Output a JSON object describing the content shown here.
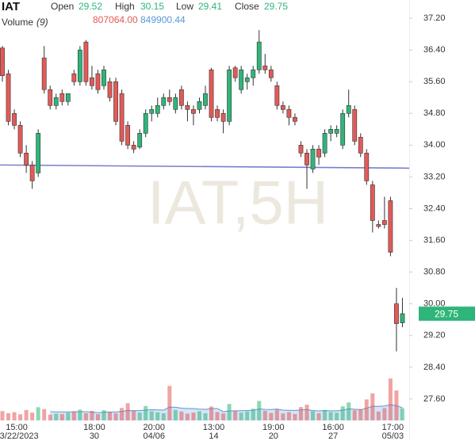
{
  "header": {
    "symbol": "IAT",
    "open_label": "Open",
    "open": 29.52,
    "high_label": "High",
    "high": 30.15,
    "low_label": "Low",
    "low": 29.41,
    "close_label": "Close",
    "close": 29.75,
    "volume_label": "Volume",
    "volume_period": "(9)",
    "volume": "807064.00",
    "volume_ma": "849900.44"
  },
  "chart_data": {
    "type": "candlestick",
    "watermark": "IAT,5H",
    "up_color": "#2fb57a",
    "down_color": "#e25a58",
    "ma_color": "#5b97d6",
    "categories": [
      null,
      null,
      "15:00",
      null,
      null,
      null,
      null,
      null,
      null,
      null,
      null,
      null,
      null,
      null,
      null,
      "18:00",
      null,
      null,
      null,
      null,
      null,
      null,
      null,
      null,
      null,
      "20:00",
      null,
      null,
      null,
      null,
      null,
      null,
      null,
      null,
      null,
      "13:00",
      null,
      null,
      null,
      null,
      null,
      null,
      null,
      null,
      null,
      "19:00",
      null,
      null,
      null,
      null,
      null,
      null,
      null,
      null,
      null,
      "16:00",
      null,
      null,
      null,
      null,
      null,
      null,
      null,
      null,
      null,
      "17:00",
      null,
      null
    ],
    "dates": [
      null,
      null,
      "03/22/2023",
      null,
      null,
      null,
      null,
      null,
      null,
      null,
      null,
      null,
      null,
      null,
      null,
      "30",
      null,
      null,
      null,
      null,
      null,
      null,
      null,
      null,
      null,
      "04/06",
      null,
      null,
      null,
      null,
      null,
      null,
      null,
      null,
      null,
      "14",
      null,
      null,
      null,
      null,
      null,
      null,
      null,
      null,
      null,
      "20",
      null,
      null,
      null,
      null,
      null,
      null,
      null,
      null,
      null,
      "27",
      null,
      null,
      null,
      null,
      null,
      null,
      null,
      null,
      null,
      "05/03",
      null,
      null
    ],
    "open": [
      36.45,
      35.8,
      34.8,
      34.5,
      33.8,
      33.5,
      33.3,
      36.2,
      35.4,
      35.0,
      35.3,
      35.1,
      35.8,
      35.6,
      36.6,
      35.7,
      35.8,
      35.5,
      35.6,
      35.6,
      35.3,
      34.5,
      34.0,
      33.95,
      34.3,
      34.8,
      34.8,
      35.0,
      35.2,
      34.9,
      35.4,
      35.0,
      34.9,
      34.9,
      35.0,
      35.9,
      34.9,
      34.8,
      34.6,
      35.95,
      35.4,
      35.6,
      35.7,
      35.9,
      36.0,
      35.9,
      35.5,
      35.0,
      34.9,
      34.7,
      34.0,
      33.8,
      33.4,
      33.9,
      33.8,
      34.3,
      34.3,
      34.0,
      34.8,
      34.9,
      34.2,
      33.8,
      33.0,
      32.0,
      32.1,
      32.6,
      30.0,
      29.52
    ],
    "high": [
      36.5,
      35.9,
      34.9,
      34.6,
      34.0,
      33.6,
      34.4,
      36.5,
      35.5,
      35.3,
      35.4,
      35.3,
      35.9,
      36.5,
      36.65,
      36.0,
      35.9,
      36.0,
      35.7,
      35.7,
      35.4,
      34.6,
      34.1,
      34.4,
      34.9,
      35.0,
      35.2,
      35.3,
      35.4,
      35.3,
      35.5,
      35.1,
      35.0,
      35.2,
      35.5,
      35.95,
      35.0,
      34.9,
      36.0,
      36.0,
      36.0,
      35.8,
      36.0,
      36.9,
      36.3,
      36.0,
      35.6,
      35.1,
      35.0,
      34.8,
      34.1,
      33.9,
      34.0,
      34.0,
      34.4,
      34.5,
      34.5,
      34.9,
      35.4,
      35.0,
      34.3,
      33.9,
      33.1,
      32.1,
      32.7,
      32.7,
      30.4,
      30.15
    ],
    "low": [
      35.6,
      34.5,
      34.4,
      33.7,
      33.3,
      32.9,
      33.2,
      35.3,
      34.9,
      34.9,
      35.0,
      35.0,
      35.5,
      35.5,
      35.5,
      35.4,
      35.3,
      35.4,
      35.1,
      34.5,
      34.0,
      33.9,
      33.8,
      33.9,
      34.2,
      34.6,
      34.7,
      34.9,
      35.0,
      34.8,
      34.9,
      34.6,
      34.5,
      34.8,
      34.9,
      34.6,
      34.6,
      34.3,
      34.5,
      35.6,
      35.3,
      35.4,
      35.5,
      35.8,
      35.8,
      35.6,
      34.9,
      34.8,
      34.5,
      34.5,
      33.7,
      32.9,
      33.3,
      33.5,
      33.7,
      34.1,
      34.2,
      33.9,
      34.7,
      34.0,
      33.7,
      33.0,
      31.8,
      31.9,
      31.9,
      31.2,
      28.8,
      29.41
    ],
    "close": [
      35.75,
      34.6,
      34.5,
      33.8,
      33.5,
      33.1,
      34.3,
      35.4,
      35.0,
      35.2,
      35.1,
      35.3,
      35.6,
      36.4,
      35.6,
      35.5,
      35.4,
      35.9,
      35.2,
      34.6,
      34.1,
      34.0,
      33.9,
      34.3,
      34.8,
      34.9,
      35.0,
      35.2,
      35.1,
      35.2,
      35.0,
      34.9,
      34.8,
      35.1,
      35.3,
      34.7,
      34.7,
      34.6,
      35.9,
      35.7,
      35.9,
      35.7,
      35.9,
      36.6,
      35.9,
      35.7,
      35.0,
      34.9,
      34.7,
      34.6,
      33.8,
      33.5,
      33.9,
      33.7,
      34.3,
      34.4,
      34.4,
      34.8,
      35.0,
      34.1,
      33.8,
      33.1,
      32.1,
      31.95,
      32.0,
      31.3,
      29.5,
      29.75
    ],
    "volume": [
      620000,
      480000,
      550000,
      410000,
      700000,
      520000,
      880000,
      760000,
      390000,
      450000,
      430000,
      510000,
      600000,
      720000,
      480000,
      640000,
      420000,
      680000,
      560000,
      470000,
      830000,
      1150000,
      640000,
      520000,
      960000,
      610000,
      540000,
      480000,
      2300000,
      700000,
      590000,
      450000,
      520000,
      610000,
      480000,
      930000,
      560000,
      470000,
      1100000,
      650000,
      520000,
      600000,
      780000,
      1300000,
      640000,
      500000,
      720000,
      460000,
      550000,
      430000,
      890000,
      1050000,
      620000,
      480000,
      700000,
      560000,
      510000,
      940000,
      1200000,
      680000,
      760000,
      1400000,
      1800000,
      590000,
      820000,
      2800000,
      2000000,
      807064
    ],
    "volume_ma": [
      null,
      null,
      null,
      null,
      null,
      null,
      null,
      null,
      590000,
      571000,
      566000,
      561000,
      582000,
      584000,
      580000,
      553000,
      516000,
      548000,
      560000,
      564000,
      600000,
      661000,
      652000,
      657000,
      692000,
      713000,
      698000,
      689000,
      892000,
      878000,
      816000,
      794000,
      794000,
      756000,
      741000,
      784000,
      793000,
      590000,
      634000,
      641000,
      649000,
      658000,
      677000,
      768000,
      736000,
      729000,
      757000,
      686000,
      674000,
      664000,
      697000,
      727000,
      651000,
      633000,
      656000,
      638000,
      643000,
      687000,
      772000,
      749000,
      717000,
      803000,
      950000,
      938000,
      967000,
      1050000,
      980000,
      849900.44
    ],
    "trendline": {
      "values": [
        33.5,
        33.42
      ],
      "color": "#7a7ec8"
    },
    "last_price": {
      "value": 29.75,
      "color": "#2fb57a"
    },
    "ylim": [
      26.88,
      37.66
    ],
    "yticks": [
      {
        "value": 37.2,
        "label": "37.20"
      },
      {
        "value": 36.4,
        "label": "36.40"
      },
      {
        "value": 35.6,
        "label": "35.60"
      },
      {
        "value": 34.8,
        "label": "34.80"
      },
      {
        "value": 34.0,
        "label": "34.00"
      },
      {
        "value": 33.2,
        "label": "33.20"
      },
      {
        "value": 32.4,
        "label": "32.40"
      },
      {
        "value": 31.6,
        "label": "31.60"
      },
      {
        "value": 30.8,
        "label": "30.80"
      },
      {
        "value": 30.0,
        "label": "30.00"
      },
      {
        "value": 29.2,
        "label": "29.20"
      },
      {
        "value": 28.4,
        "label": "28.40"
      },
      {
        "value": 27.6,
        "label": "27.60"
      }
    ]
  }
}
